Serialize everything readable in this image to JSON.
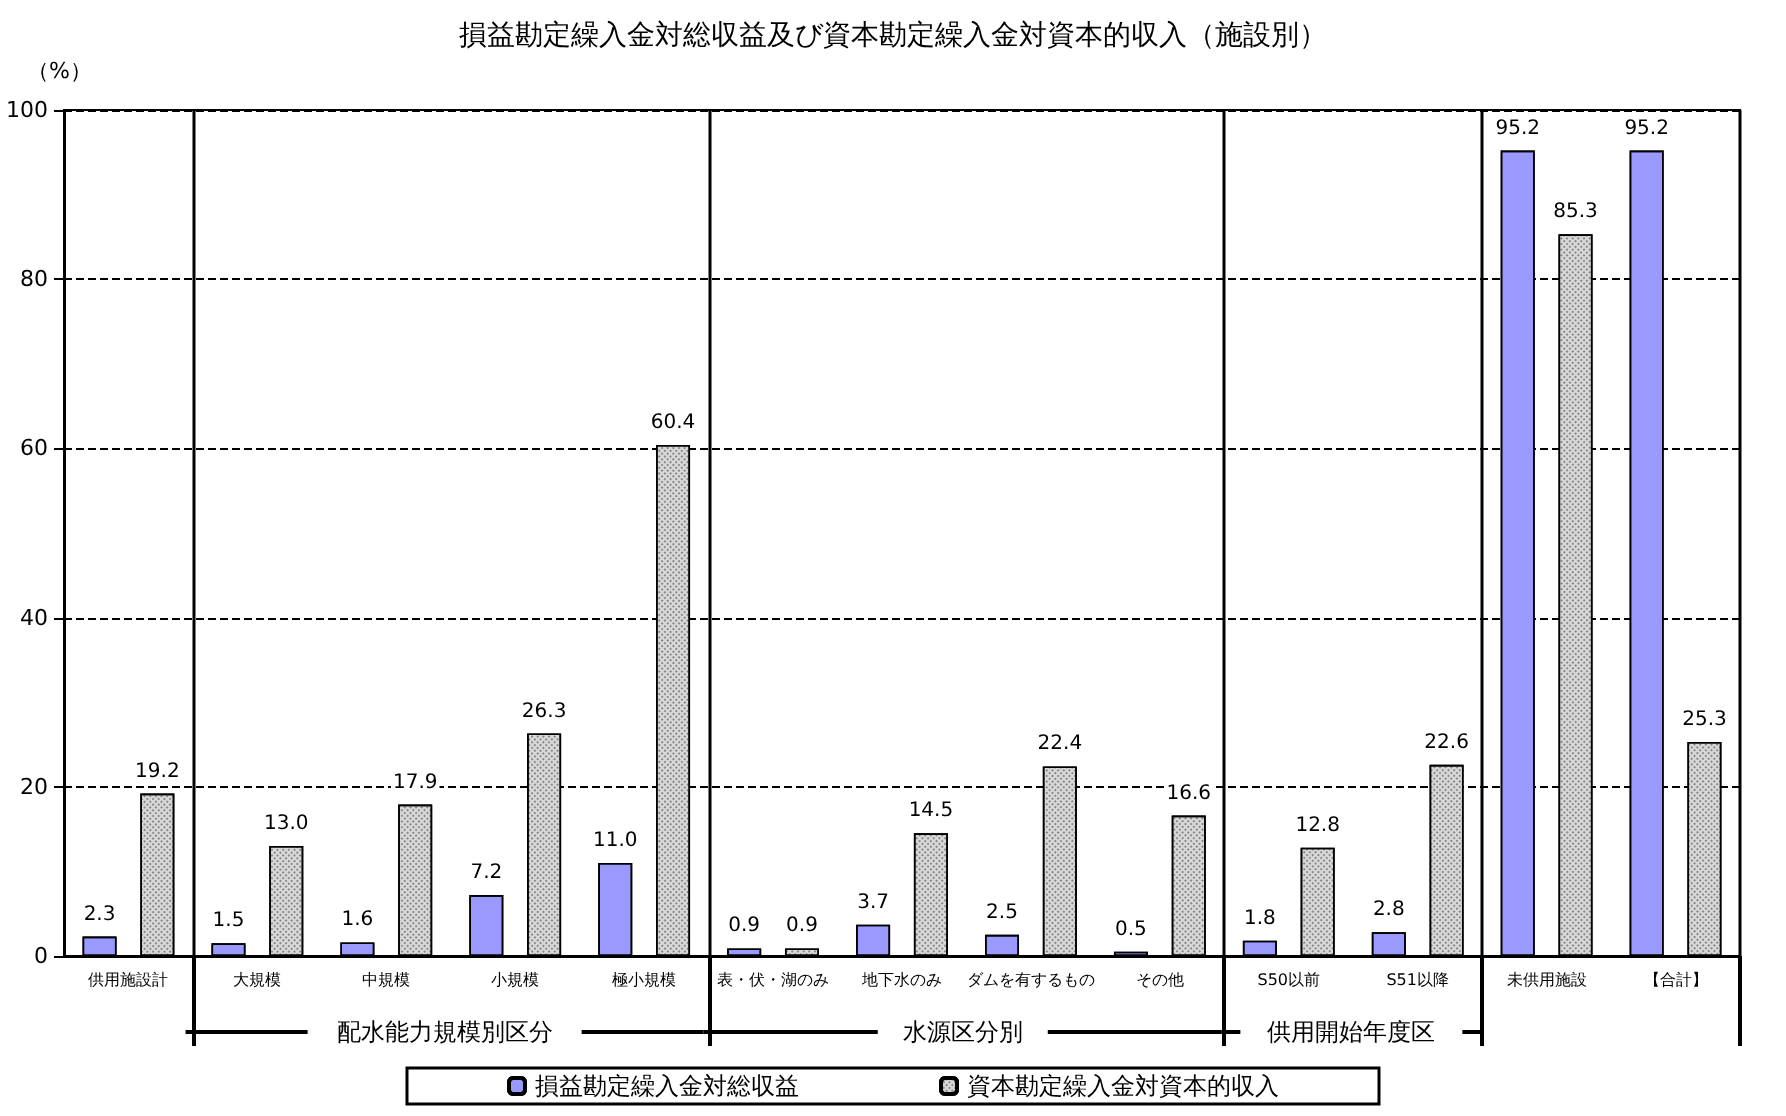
{
  "chart_data": {
    "type": "bar",
    "title": "損益勘定繰入金対総収益及び資本勘定繰入金対資本的収入（施設別）",
    "ylabel": "（%）",
    "categories": [
      "供用施設計",
      "大規模",
      "中規模",
      "小規模",
      "極小規模",
      "表・伏・湖のみ",
      "地下水のみ",
      "ダムを有するもの",
      "その他",
      "S50以前",
      "S51以降",
      "未供用施設",
      "【合計】"
    ],
    "series": [
      {
        "name": "損益勘定繰入金対総収益",
        "color": "#9999ff",
        "values": [
          2.3,
          1.5,
          1.6,
          7.2,
          11.0,
          0.9,
          3.7,
          2.5,
          0.5,
          1.8,
          2.8,
          95.2,
          95.2
        ],
        "value_labels": [
          "2.3",
          "1.5",
          "1.6",
          "7.2",
          "11.0",
          "0.9",
          "3.7",
          "2.5",
          "0.5",
          "1.8",
          "2.8",
          "95.2",
          "95.2"
        ]
      },
      {
        "name": "資本勘定繰入金対資本的収入",
        "color": "#d9d9d9",
        "values": [
          19.2,
          13.0,
          17.9,
          26.3,
          60.4,
          0.9,
          14.5,
          22.4,
          16.6,
          12.8,
          22.6,
          85.3,
          25.3
        ],
        "value_labels": [
          "19.2",
          "13.0",
          "17.9",
          "26.3",
          "60.4",
          "0.9",
          "14.5",
          "22.4",
          "16.6",
          "12.8",
          "22.6",
          "85.3",
          "25.3"
        ]
      }
    ],
    "annotations": [
      "配水能力規模別区分",
      "水源区分別",
      "供用開始年度区"
    ],
    "ylim": [
      0,
      100
    ],
    "yticks": [
      0,
      20,
      40,
      60,
      80,
      100
    ],
    "grid": "y",
    "legend": "bottom"
  }
}
